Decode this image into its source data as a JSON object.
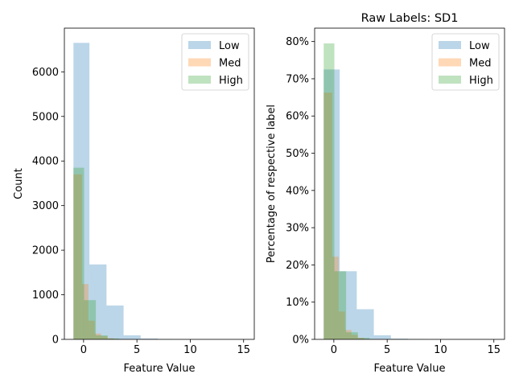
{
  "chart_data": [
    {
      "type": "bar",
      "title": "",
      "xlabel": "Feature Value",
      "ylabel": "Count",
      "xlim": [
        -1.8,
        16.0
      ],
      "ylim": [
        0,
        6980
      ],
      "xticks": [
        0,
        5,
        10,
        15
      ],
      "yticks": [
        0,
        1000,
        2000,
        3000,
        4000,
        5000,
        6000
      ],
      "ytick_format": "plain",
      "legend": "top-right",
      "series": [
        {
          "name": "Low",
          "color": "#1f77b4",
          "bins": [
            [
              -0.95,
              0.55,
              6650
            ],
            [
              0.55,
              2.15,
              1680
            ],
            [
              2.15,
              3.75,
              760
            ],
            [
              3.75,
              5.35,
              90
            ],
            [
              5.35,
              6.95,
              20
            ],
            [
              6.95,
              8.55,
              8
            ]
          ]
        },
        {
          "name": "Med",
          "color": "#ff7f0e",
          "bins": [
            [
              -0.95,
              -0.15,
              3700
            ],
            [
              -0.15,
              0.45,
              1240
            ],
            [
              0.45,
              1.05,
              420
            ],
            [
              1.05,
              1.65,
              130
            ],
            [
              1.65,
              2.25,
              70
            ],
            [
              2.25,
              2.85,
              25
            ]
          ]
        },
        {
          "name": "High",
          "color": "#2ca02c",
          "bins": [
            [
              -0.95,
              0.05,
              3850
            ],
            [
              0.05,
              1.15,
              880
            ],
            [
              1.15,
              2.25,
              90
            ],
            [
              2.25,
              3.35,
              20
            ]
          ]
        }
      ]
    },
    {
      "type": "bar",
      "title": "Raw Labels: SD1",
      "xlabel": "Feature Value",
      "ylabel": "Percentage of respective label",
      "xlim": [
        -1.8,
        16.0
      ],
      "ylim": [
        0,
        0.836
      ],
      "xticks": [
        0,
        5,
        10,
        15
      ],
      "yticks": [
        0,
        0.1,
        0.2,
        0.3,
        0.4,
        0.5,
        0.6,
        0.7,
        0.8
      ],
      "ytick_format": "percent",
      "legend": "top-right",
      "series": [
        {
          "name": "Low",
          "color": "#1f77b4",
          "bins": [
            [
              -0.95,
              0.55,
              0.725
            ],
            [
              0.55,
              2.15,
              0.183
            ],
            [
              2.15,
              3.75,
              0.081
            ],
            [
              3.75,
              5.35,
              0.011
            ],
            [
              5.35,
              6.95,
              0.002
            ],
            [
              6.95,
              8.55,
              0.001
            ]
          ]
        },
        {
          "name": "Med",
          "color": "#ff7f0e",
          "bins": [
            [
              -0.95,
              -0.15,
              0.663
            ],
            [
              -0.15,
              0.45,
              0.222
            ],
            [
              0.45,
              1.05,
              0.075
            ],
            [
              1.05,
              1.65,
              0.025
            ],
            [
              1.65,
              2.25,
              0.012
            ],
            [
              2.25,
              2.85,
              0.004
            ]
          ]
        },
        {
          "name": "High",
          "color": "#2ca02c",
          "bins": [
            [
              -0.95,
              0.05,
              0.795
            ],
            [
              0.05,
              1.15,
              0.183
            ],
            [
              1.15,
              2.25,
              0.019
            ],
            [
              2.25,
              3.35,
              0.004
            ]
          ]
        }
      ]
    }
  ]
}
